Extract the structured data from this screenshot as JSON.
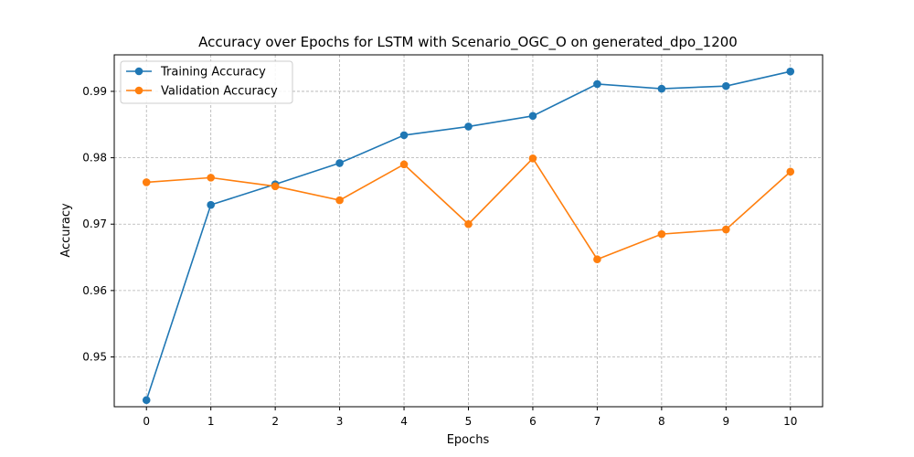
{
  "chart_data": {
    "type": "line",
    "title": "Accuracy over Epochs for LSTM with Scenario_OGC_O on generated_dpo_1200",
    "xlabel": "Epochs",
    "ylabel": "Accuracy",
    "x": [
      0,
      1,
      2,
      3,
      4,
      5,
      6,
      7,
      8,
      9,
      10
    ],
    "x_ticks": [
      0,
      1,
      2,
      3,
      4,
      5,
      6,
      7,
      8,
      9,
      10
    ],
    "y_ticks": [
      "0.95",
      "0.96",
      "0.97",
      "0.98",
      "0.99"
    ],
    "xlim": [
      -0.5,
      10.5
    ],
    "ylim": [
      0.9425,
      0.9955
    ],
    "grid": true,
    "legend_position": "top-left",
    "series": [
      {
        "name": "Training Accuracy",
        "color": "#1f77b4",
        "values": [
          0.9435,
          0.9729,
          0.976,
          0.9792,
          0.9834,
          0.9847,
          0.9863,
          0.9911,
          0.9904,
          0.9908,
          0.993
        ]
      },
      {
        "name": "Validation Accuracy",
        "color": "#ff7f0e",
        "values": [
          0.9763,
          0.977,
          0.9757,
          0.9736,
          0.979,
          0.97,
          0.9799,
          0.9647,
          0.9685,
          0.9692,
          0.9779
        ]
      }
    ]
  }
}
